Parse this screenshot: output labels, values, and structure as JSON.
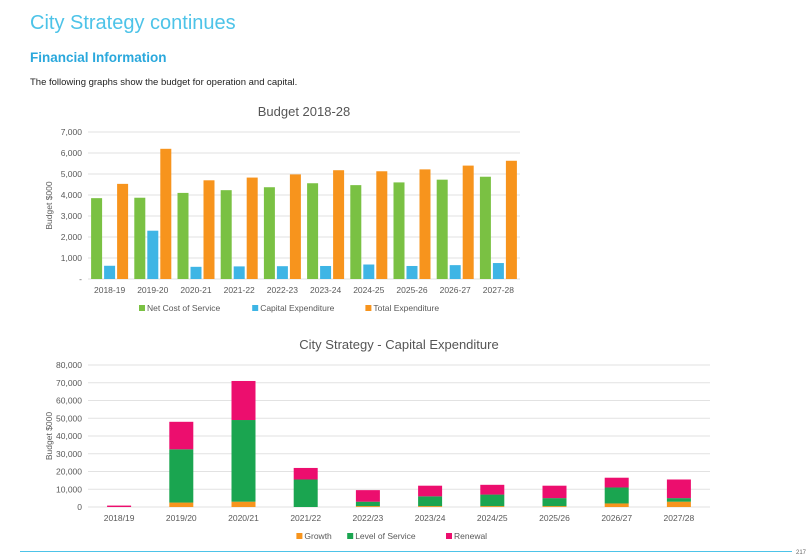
{
  "page": {
    "title": "City Strategy continues",
    "section_title": "Financial Information",
    "intro": "The following graphs show the budget for operation and capital.",
    "page_number": "217"
  },
  "colors": {
    "title": "#4dc3e8",
    "section": "#2aa8dc",
    "net_cost": "#7ac143",
    "capex": "#3eb5e5",
    "total": "#f7941d",
    "growth": "#f7941d",
    "level_of_service": "#1aa550",
    "renewal": "#ec0e6e"
  },
  "chart_data": [
    {
      "type": "bar",
      "title": "Budget 2018-28",
      "ylabel": "Budget $000",
      "xlabel": "",
      "ylim": [
        0,
        7000
      ],
      "yticks": [
        0,
        1000,
        2000,
        3000,
        4000,
        5000,
        6000,
        7000
      ],
      "ytick_labels": [
        "-",
        "1,000",
        "2,000",
        "3,000",
        "4,000",
        "5,000",
        "6,000",
        "7,000"
      ],
      "grid": true,
      "legend": "bottom",
      "categories": [
        "2018-19",
        "2019-20",
        "2020-21",
        "2021-22",
        "2022-23",
        "2023-24",
        "2024-25",
        "2025-26",
        "2026-27",
        "2027-28"
      ],
      "series": [
        {
          "name": "Net Cost of Service",
          "color": "#7ac143",
          "values": [
            3850,
            3870,
            4100,
            4230,
            4370,
            4560,
            4470,
            4600,
            4730,
            4870
          ]
        },
        {
          "name": "Capital Expenditure",
          "color": "#3eb5e5",
          "values": [
            630,
            2300,
            580,
            600,
            610,
            620,
            690,
            620,
            660,
            760
          ]
        },
        {
          "name": "Total Expenditure",
          "color": "#f7941d",
          "values": [
            4530,
            6200,
            4700,
            4830,
            4980,
            5180,
            5130,
            5220,
            5400,
            5630
          ]
        }
      ]
    },
    {
      "type": "bar",
      "stacked": true,
      "title": "City Strategy - Capital Expenditure",
      "ylabel": "Budget $000",
      "xlabel": "",
      "ylim": [
        0,
        80000
      ],
      "yticks": [
        0,
        10000,
        20000,
        30000,
        40000,
        50000,
        60000,
        70000,
        80000
      ],
      "ytick_labels": [
        "0",
        "10,000",
        "20,000",
        "30,000",
        "40,000",
        "50,000",
        "60,000",
        "70,000",
        "80,000"
      ],
      "grid": true,
      "legend": "bottom",
      "categories": [
        "2018/19",
        "2019/20",
        "2020/21",
        "2021/22",
        "2022/23",
        "2023/24",
        "2024/25",
        "2025/26",
        "2026/27",
        "2027/28"
      ],
      "series": [
        {
          "name": "Growth",
          "color": "#f7941d",
          "values": [
            0,
            2500,
            3000,
            0,
            500,
            500,
            500,
            500,
            2000,
            3000
          ]
        },
        {
          "name": "Level of Service",
          "color": "#1aa550",
          "values": [
            0,
            30000,
            46000,
            15500,
            2500,
            5500,
            6500,
            4500,
            9000,
            2000
          ]
        },
        {
          "name": "Renewal",
          "color": "#ec0e6e",
          "values": [
            800,
            15500,
            22000,
            6500,
            6500,
            6000,
            5500,
            7000,
            5500,
            10500
          ]
        }
      ]
    }
  ]
}
